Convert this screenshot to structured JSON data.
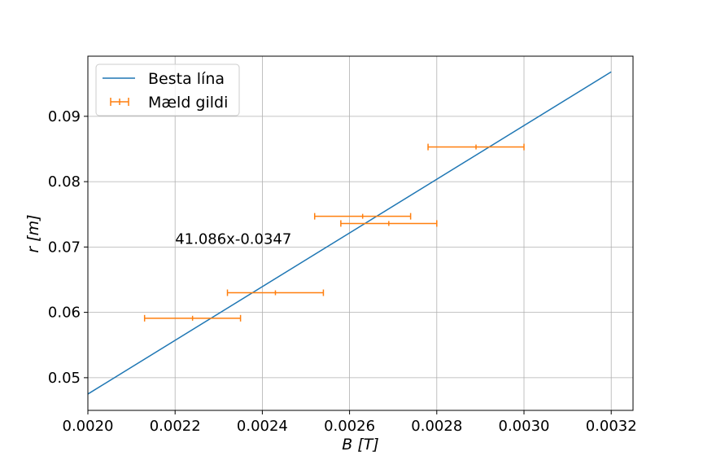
{
  "chart_data": {
    "type": "scatter",
    "xlabel_var": "B",
    "xlabel_unit": "[T]",
    "ylabel_var": "r",
    "ylabel_unit": "[m]",
    "xlim": [
      0.002,
      0.00325
    ],
    "ylim": [
      0.045,
      0.0992
    ],
    "xticks": [
      0.002,
      0.0022,
      0.0024,
      0.0026,
      0.0028,
      0.003,
      0.0032
    ],
    "xtick_labels": [
      "0.0020",
      "0.0022",
      "0.0024",
      "0.0026",
      "0.0028",
      "0.0030",
      "0.0032"
    ],
    "yticks": [
      0.05,
      0.06,
      0.07,
      0.08,
      0.09
    ],
    "ytick_labels": [
      "0.05",
      "0.06",
      "0.07",
      "0.08",
      "0.09"
    ],
    "grid": true,
    "legend_position": "top-left",
    "series": [
      {
        "name": "Besta lína",
        "kind": "line",
        "color": "#1f77b4",
        "slope": 41.086,
        "intercept": -0.0347,
        "x": [
          0.002,
          0.0032
        ],
        "y": [
          0.0475,
          0.0968
        ]
      },
      {
        "name": "Mæld gildi",
        "kind": "errorbar",
        "color": "#ff7f0e",
        "points": [
          {
            "x": 0.00224,
            "y": 0.0591,
            "xerr": 0.00011
          },
          {
            "x": 0.00243,
            "y": 0.063,
            "xerr": 0.00011
          },
          {
            "x": 0.00263,
            "y": 0.0747,
            "xerr": 0.00011
          },
          {
            "x": 0.00269,
            "y": 0.0736,
            "xerr": 0.00011
          },
          {
            "x": 0.00289,
            "y": 0.0853,
            "xerr": 0.00011
          }
        ]
      }
    ],
    "annotation": {
      "text": "41.086x-0.0347",
      "x": 0.0022,
      "y": 0.0705
    }
  }
}
